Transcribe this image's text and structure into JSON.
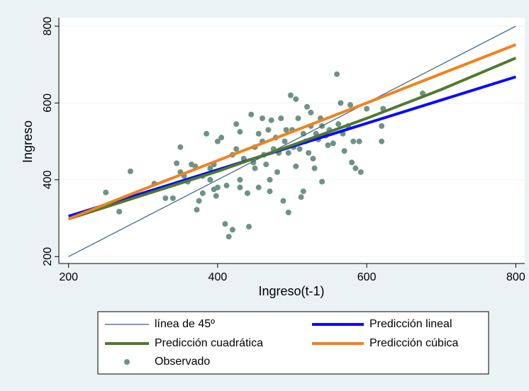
{
  "chart_data": {
    "type": "scatter",
    "xlabel": "Ingreso(t-1)",
    "ylabel": "Ingreso",
    "xlim": [
      187,
      812
    ],
    "ylim": [
      182,
      822
    ],
    "xticks": [
      200,
      400,
      600,
      800
    ],
    "yticks": [
      200,
      400,
      600,
      800
    ],
    "grid": true,
    "series": [
      {
        "name": "línea de 45º",
        "type": "line",
        "color": "#3c5f86",
        "x": [
          200,
          800
        ],
        "values": [
          200,
          800
        ]
      },
      {
        "name": "Predicción lineal",
        "type": "line",
        "color": "#0a0aff",
        "x": [
          200,
          800
        ],
        "values": [
          305,
          668
        ]
      },
      {
        "name": "Predicción cuadrática",
        "type": "line",
        "color": "#4f7a2b",
        "x": [
          200,
          300,
          400,
          500,
          600,
          700,
          800
        ],
        "values": [
          298,
          360,
          422,
          490,
          560,
          635,
          717
        ]
      },
      {
        "name": "Predicción cúbica",
        "type": "line",
        "color": "#f0821e",
        "x": [
          200,
          300,
          400,
          500,
          600,
          700,
          800
        ],
        "values": [
          298,
          375,
          450,
          525,
          600,
          676,
          752
        ]
      },
      {
        "name": "Observado",
        "type": "scatter",
        "color": "#6f9286",
        "x": [
          250,
          268,
          283,
          315,
          330,
          340,
          345,
          350,
          350,
          355,
          360,
          365,
          370,
          372,
          375,
          380,
          385,
          390,
          390,
          395,
          398,
          400,
          405,
          410,
          412,
          415,
          420,
          420,
          425,
          425,
          430,
          430,
          435,
          440,
          442,
          445,
          448,
          450,
          450,
          455,
          455,
          460,
          462,
          465,
          468,
          470,
          472,
          475,
          478,
          480,
          482,
          485,
          488,
          490,
          492,
          495,
          495,
          498,
          500,
          502,
          505,
          508,
          510,
          512,
          515,
          518,
          520,
          522,
          525,
          528,
          530,
          532,
          535,
          538,
          540,
          540,
          545,
          548,
          550,
          555,
          560,
          562,
          565,
          568,
          570,
          575,
          578,
          580,
          582,
          585,
          590,
          592,
          600,
          620,
          620,
          622,
          675,
          380,
          395,
          460,
          400,
          505,
          525,
          470,
          430,
          515
        ],
        "values": [
          367,
          317,
          422,
          390,
          352,
          352,
          443,
          485,
          420,
          410,
          395,
          440,
          435,
          322,
          345,
          365,
          520,
          400,
          430,
          440,
          358,
          500,
          510,
          285,
          385,
          252,
          270,
          465,
          480,
          545,
          525,
          400,
          455,
          365,
          278,
          570,
          445,
          430,
          485,
          520,
          380,
          500,
          465,
          440,
          530,
          400,
          555,
          480,
          510,
          420,
          470,
          560,
          345,
          500,
          530,
          315,
          470,
          620,
          530,
          485,
          610,
          560,
          480,
          355,
          520,
          500,
          590,
          470,
          540,
          455,
          430,
          520,
          505,
          560,
          395,
          540,
          515,
          490,
          530,
          495,
          675,
          545,
          600,
          520,
          475,
          540,
          595,
          445,
          500,
          430,
          500,
          420,
          585,
          540,
          500,
          585,
          625,
          410,
          375,
          560,
          380,
          435,
          575,
          370,
          380,
          370
        ]
      }
    ]
  }
}
